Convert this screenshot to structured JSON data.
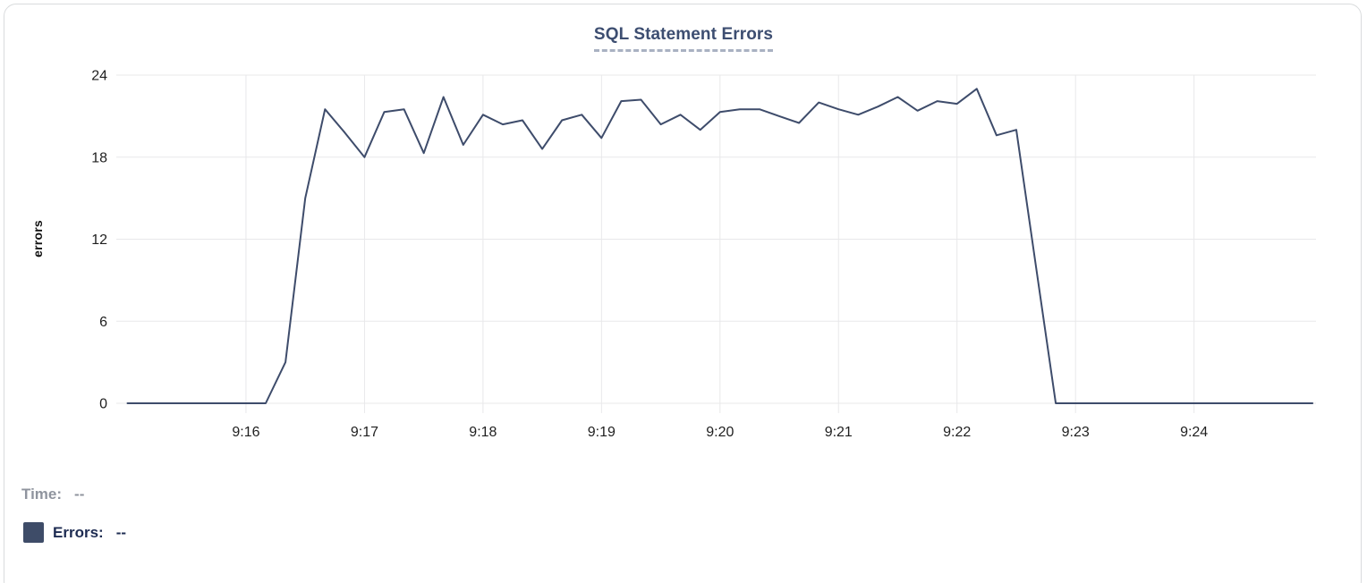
{
  "panel": {
    "background": "#ffffff",
    "border_color": "#d9dbdd"
  },
  "chart": {
    "title": "SQL Statement Errors",
    "title_color": "#3d4e71",
    "line_color": "#3e4c6b",
    "grid_color": "#e8e8ea",
    "tick_label_color": "#1f1f1f"
  },
  "chart_data": {
    "type": "line",
    "title": "SQL Statement Errors",
    "xlabel": "",
    "ylabel": "errors",
    "ylim": [
      0,
      24
    ],
    "y_ticks": [
      0,
      6,
      12,
      18,
      24
    ],
    "x_ticks": [
      {
        "label": "9:16",
        "min": 1
      },
      {
        "label": "9:17",
        "min": 2
      },
      {
        "label": "9:18",
        "min": 3
      },
      {
        "label": "9:19",
        "min": 4
      },
      {
        "label": "9:20",
        "min": 5
      },
      {
        "label": "9:21",
        "min": 6
      },
      {
        "label": "9:22",
        "min": 7
      },
      {
        "label": "9:23",
        "min": 8
      },
      {
        "label": "9:24",
        "min": 9
      }
    ],
    "x_start_time": "9:15:00",
    "x_end_time": "9:25:00",
    "sample_interval_seconds": 10,
    "grid": true,
    "legend_position": "bottom-left",
    "series": [
      {
        "name": "Errors",
        "color": "#3e4c6b",
        "values": [
          0,
          0,
          0,
          0,
          0,
          0,
          0,
          0,
          3,
          15,
          21.5,
          19.8,
          18,
          21.3,
          21.5,
          18.3,
          22.4,
          18.9,
          21.1,
          20.4,
          20.7,
          18.6,
          20.7,
          21.1,
          19.4,
          22.1,
          22.2,
          20.4,
          21.1,
          20,
          21.3,
          21.5,
          21.5,
          21,
          20.5,
          22,
          21.5,
          21.1,
          21.7,
          22.4,
          21.4,
          22.1,
          21.9,
          23,
          19.6,
          20,
          10,
          0,
          0,
          0,
          0,
          0,
          0,
          0,
          0,
          0,
          0,
          0,
          0,
          0,
          0
        ]
      }
    ]
  },
  "tooltip": {
    "time_label": "Time:",
    "time_value": "--",
    "errors_label": "Errors:",
    "errors_value": "--",
    "swatch_color": "#3e4c68"
  }
}
